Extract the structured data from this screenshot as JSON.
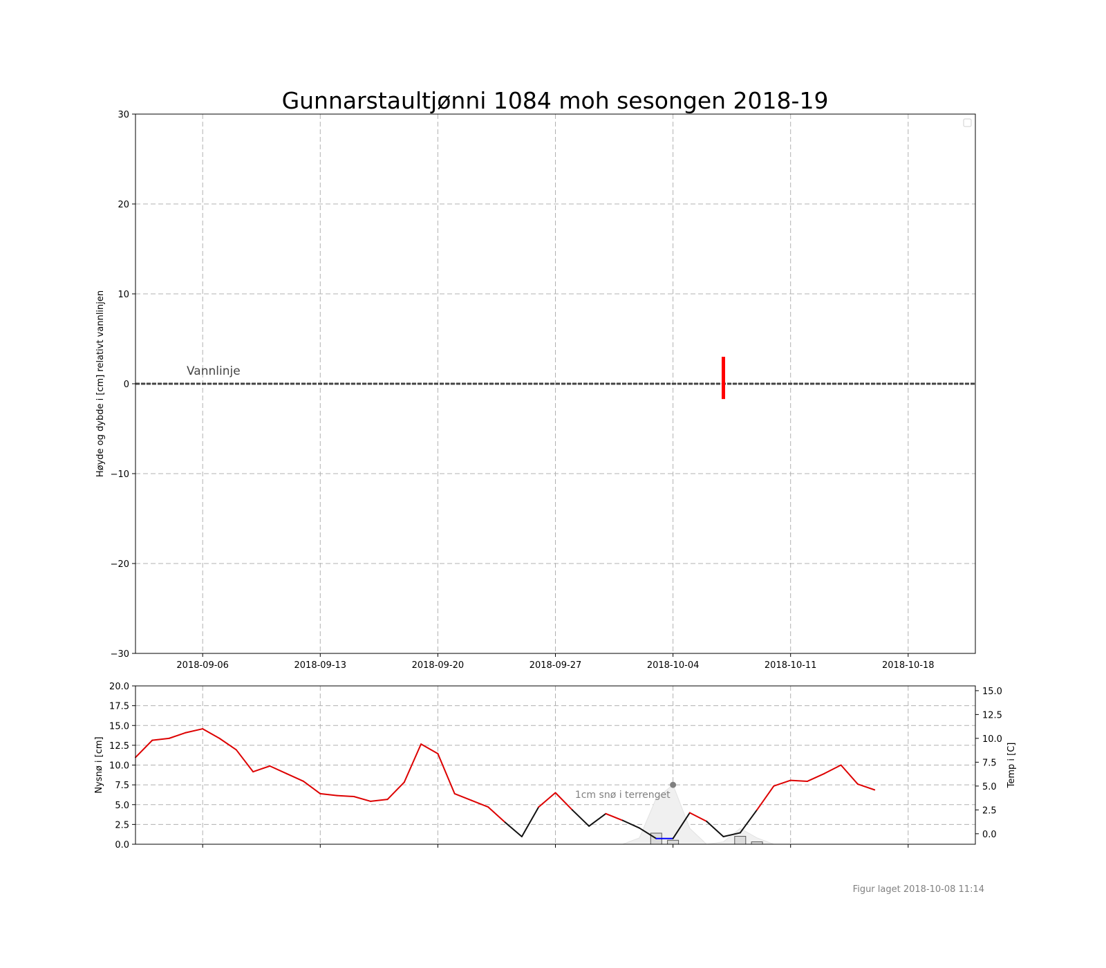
{
  "title": "Gunnarstaultjønni 1084 moh sesongen 2018-19",
  "footer": "Figur laget 2018-10-08 11:14",
  "colors": {
    "temp_warm": "#dd0000",
    "temp_cold": "#111111",
    "ice_marker": "#ff0000",
    "grid": "#b0b0b0",
    "waterline": "#444444",
    "blue_segment": "#0000ff",
    "annotation": "#808080",
    "snow_fill": "#f0f0f0"
  },
  "chart_data": [
    {
      "type": "line",
      "panel": "top",
      "title": "Gunnarstaultjønni 1084 moh sesongen 2018-19",
      "ylabel": "Høyde og dybde i [cm] relativt vannlinjen",
      "xlabel": "",
      "xlim": [
        "2018-09-02",
        "2018-10-22"
      ],
      "ylim": [
        -30,
        30
      ],
      "y_ticks": [
        -30,
        -20,
        -10,
        0,
        10,
        20,
        30
      ],
      "y_tick_labels": [
        "−30",
        "−20",
        "−10",
        "0",
        "10",
        "20",
        "30"
      ],
      "x_ticks": [
        "2018-09-06",
        "2018-09-13",
        "2018-09-20",
        "2018-09-27",
        "2018-10-04",
        "2018-10-11",
        "2018-10-18"
      ],
      "grid": true,
      "legend": "top-right (empty)",
      "waterline": {
        "y": 0,
        "label": "Vannlinje"
      },
      "ice_marker": {
        "x": "2018-10-07",
        "y_top": 3,
        "y_bottom": -1.7
      }
    },
    {
      "type": "line",
      "panel": "bottom",
      "ylabel": "Nysnø i [cm]",
      "y2label": "Temp i [C]",
      "xlim": [
        "2018-09-02",
        "2018-10-22"
      ],
      "ylim": [
        0,
        20
      ],
      "y_ticks": [
        0,
        2.5,
        5,
        7.5,
        10,
        12.5,
        15,
        17.5,
        20
      ],
      "y_tick_labels": [
        "0.0",
        "2.5",
        "5.0",
        "7.5",
        "10.0",
        "12.5",
        "15.0",
        "17.5",
        "20.0"
      ],
      "y2lim": [
        -1.1,
        15.5
      ],
      "y2_ticks": [
        0,
        2.5,
        5,
        7.5,
        10,
        12.5,
        15
      ],
      "y2_tick_labels": [
        "0.0",
        "2.5",
        "5.0",
        "7.5",
        "10.0",
        "12.5",
        "15.0"
      ],
      "grid": true,
      "annotation": {
        "text": "1cm snø i terrenget",
        "x": "2018-10-04",
        "y": 7.5
      },
      "temperature": {
        "name": "Temp",
        "x": [
          "2018-09-02",
          "2018-09-03",
          "2018-09-04",
          "2018-09-05",
          "2018-09-06",
          "2018-09-07",
          "2018-09-08",
          "2018-09-09",
          "2018-09-10",
          "2018-09-11",
          "2018-09-12",
          "2018-09-13",
          "2018-09-14",
          "2018-09-15",
          "2018-09-16",
          "2018-09-17",
          "2018-09-18",
          "2018-09-19",
          "2018-09-20",
          "2018-09-21",
          "2018-09-22",
          "2018-09-23",
          "2018-09-24",
          "2018-09-25",
          "2018-09-26",
          "2018-09-27",
          "2018-09-28",
          "2018-09-29",
          "2018-09-30",
          "2018-10-01",
          "2018-10-02",
          "2018-10-03",
          "2018-10-04",
          "2018-10-05",
          "2018-10-06",
          "2018-10-07",
          "2018-10-08",
          "2018-10-09",
          "2018-10-10",
          "2018-10-11",
          "2018-10-12",
          "2018-10-13",
          "2018-10-14",
          "2018-10-15",
          "2018-10-16"
        ],
        "values": [
          8.0,
          9.8,
          10.0,
          10.6,
          11.0,
          10.0,
          8.8,
          6.5,
          7.1,
          6.3,
          5.5,
          4.2,
          4.0,
          3.9,
          3.4,
          3.6,
          5.4,
          9.4,
          8.4,
          4.2,
          3.5,
          2.8,
          1.2,
          -0.3,
          2.8,
          4.3,
          2.5,
          0.8,
          2.1,
          1.4,
          0.6,
          -0.5,
          -0.5,
          2.2,
          1.3,
          -0.3,
          0.1,
          2.5,
          5.0,
          5.6,
          5.5,
          6.3,
          7.2,
          5.2,
          4.6
        ]
      },
      "snow_bars": [
        {
          "x": "2018-10-03",
          "value": 1.4
        },
        {
          "x": "2018-10-04",
          "value": 0.5
        },
        {
          "x": "2018-10-08",
          "value": 1.0
        },
        {
          "x": "2018-10-09",
          "value": 0.3
        }
      ],
      "snow_background": {
        "x": [
          "2018-10-01",
          "2018-10-02",
          "2018-10-03",
          "2018-10-04",
          "2018-10-05",
          "2018-10-06",
          "2018-10-07",
          "2018-10-08",
          "2018-10-09",
          "2018-10-10"
        ],
        "values": [
          0,
          0.8,
          5.8,
          7.5,
          2.0,
          0,
          0.3,
          2.0,
          0.8,
          0
        ]
      }
    }
  ]
}
